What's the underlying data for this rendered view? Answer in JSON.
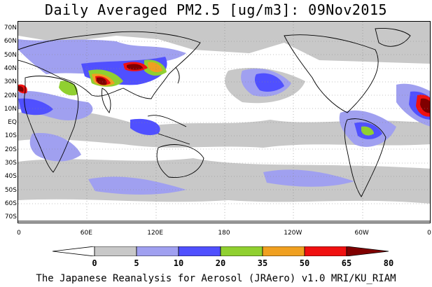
{
  "title": "Daily Averaged PM2.5 [ug/m3]: 09Nov2015",
  "lat_labels": [
    "70N",
    "60N",
    "50N",
    "40N",
    "30N",
    "20N",
    "10N",
    "EQ",
    "10S",
    "20S",
    "30S",
    "40S",
    "50S",
    "60S",
    "70S"
  ],
  "lon_labels": [
    "0",
    "60E",
    "120E",
    "180",
    "120W",
    "60W",
    "0"
  ],
  "colorbar": {
    "levels": [
      "0",
      "5",
      "10",
      "20",
      "35",
      "50",
      "65",
      "80"
    ],
    "colors": [
      "#ffffff",
      "#c8c8c8",
      "#a0a0f0",
      "#5050ff",
      "#90d030",
      "#f0a020",
      "#f01010",
      "#800000"
    ]
  },
  "footer": "The Japanese Reanalysis for Aerosol (JRAero) v1.0 MRI/KU_RIAM"
}
